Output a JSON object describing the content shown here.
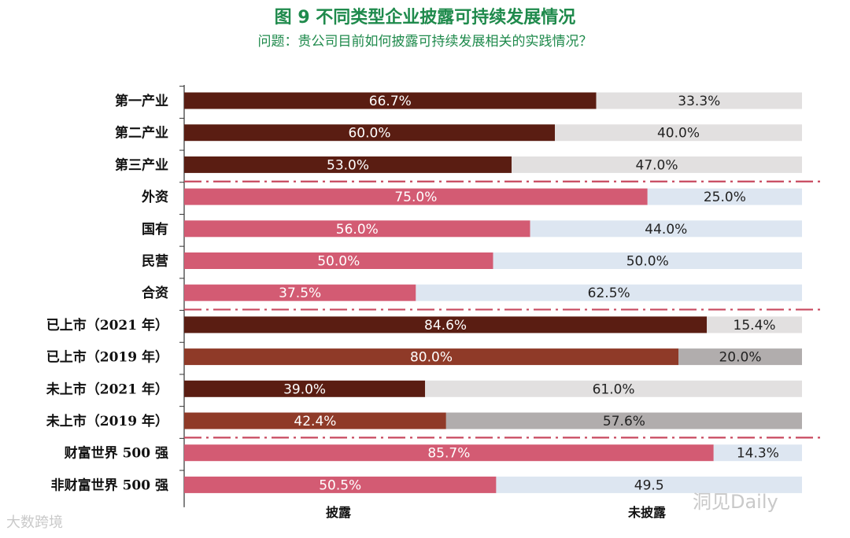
{
  "title": "图 9  不同类型企业披露可持续发展情况",
  "subtitle": "问题：贵公司目前如何披露可持续发展相关的实践情况？",
  "watermark_left": "大数跨境",
  "watermark_right": "洞见Daily",
  "chart_data": {
    "type": "bar",
    "orientation": "horizontal",
    "stacked": true,
    "xlim": [
      0,
      100
    ],
    "legend_position": "bottom",
    "legend": [
      "披露",
      "未披露"
    ],
    "categories": [
      "第一产业",
      "第二产业",
      "第三产业",
      "外资",
      "国有",
      "民营",
      "合资",
      "已上市（2021 年）",
      "已上市（2019 年）",
      "未上市（2021 年）",
      "未上市（2019 年）",
      "财富世界 500 强",
      "非财富世界 500 强"
    ],
    "series": [
      {
        "name": "披露",
        "values": [
          66.7,
          60.0,
          53.0,
          75.0,
          56.0,
          50.0,
          37.5,
          84.6,
          80.0,
          39.0,
          42.4,
          85.7,
          50.5
        ],
        "labels": [
          "66.7%",
          "60.0%",
          "53.0%",
          "75.0%",
          "56.0%",
          "50.0%",
          "37.5%",
          "84.6%",
          "80.0%",
          "39.0%",
          "42.4%",
          "85.7%",
          "50.5%"
        ],
        "colors": [
          "#5a1d12",
          "#5a1d12",
          "#5a1d12",
          "#d35b73",
          "#d35b73",
          "#d35b73",
          "#d35b73",
          "#5a1d12",
          "#8f3a28",
          "#5a1d12",
          "#8f3a28",
          "#d35b73",
          "#d35b73"
        ]
      },
      {
        "name": "未披露",
        "values": [
          33.3,
          40.0,
          47.0,
          25.0,
          44.0,
          50.0,
          62.5,
          15.4,
          20.0,
          61.0,
          57.6,
          14.3,
          49.5
        ],
        "labels": [
          "33.3%",
          "40.0%",
          "47.0%",
          "25.0%",
          "44.0%",
          "50.0%",
          "62.5%",
          "15.4%",
          "20.0%",
          "61.0%",
          "57.6%",
          "14.3%",
          "49.5"
        ],
        "colors": [
          "#e2e0e0",
          "#e2e0e0",
          "#e2e0e0",
          "#dde6f1",
          "#dde6f1",
          "#dde6f1",
          "#dde6f1",
          "#e2e0e0",
          "#b1adad",
          "#e2e0e0",
          "#b1adad",
          "#dde6f1",
          "#dde6f1"
        ]
      }
    ],
    "group_separators_after": [
      2,
      6,
      10
    ],
    "separator_color": "#c8495f"
  }
}
